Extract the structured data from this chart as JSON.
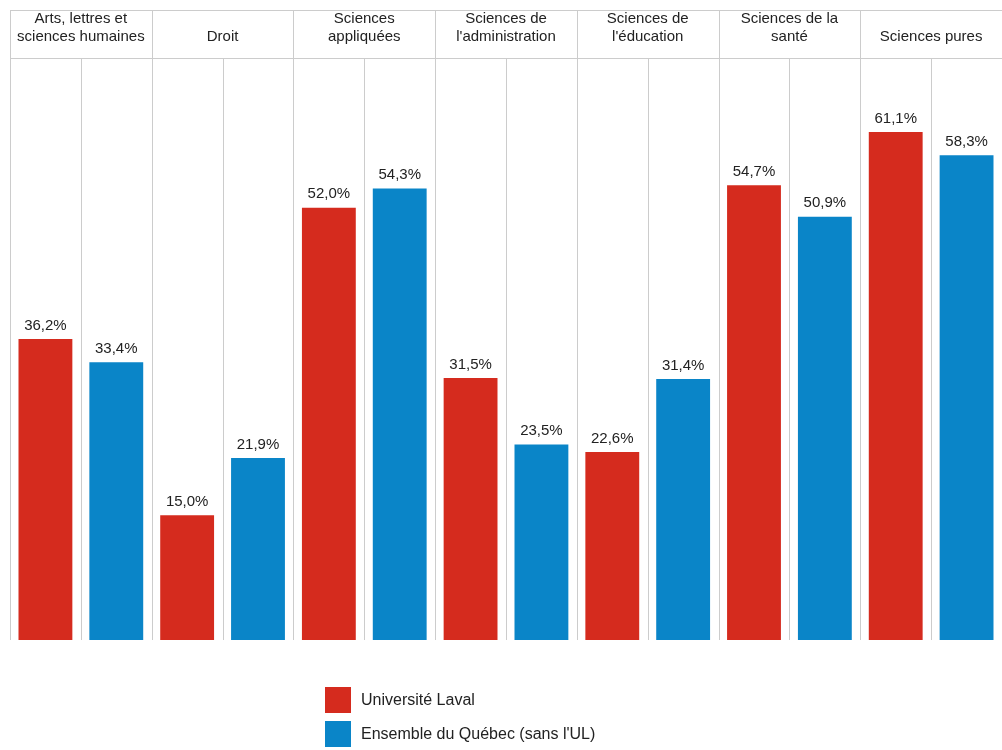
{
  "chart_data": {
    "type": "bar",
    "categories": [
      "Arts, lettres et sciences humaines",
      "Droit",
      "Sciences appliquées",
      "Sciences de l'administration",
      "Sciences de l'éducation",
      "Sciences de la santé",
      "Sciences pures"
    ],
    "series": [
      {
        "name": "Université Laval",
        "color": "#d52b1e",
        "values": [
          36.2,
          15.0,
          52.0,
          31.5,
          22.6,
          54.7,
          61.1
        ],
        "value_labels": [
          "36,2%",
          "15,0%",
          "52,0%",
          "31,5%",
          "22,6%",
          "54,7%",
          "61,1%"
        ]
      },
      {
        "name": "Ensemble du Québec (sans l'UL)",
        "color": "#0a85c8",
        "values": [
          33.4,
          21.9,
          54.3,
          23.5,
          31.4,
          50.9,
          58.3
        ],
        "value_labels": [
          "33,4%",
          "21,9%",
          "54,3%",
          "23,5%",
          "31,4%",
          "50,9%",
          "58,3%"
        ]
      }
    ],
    "grid": "x",
    "legend": "bottom",
    "tick_labels": "x"
  }
}
